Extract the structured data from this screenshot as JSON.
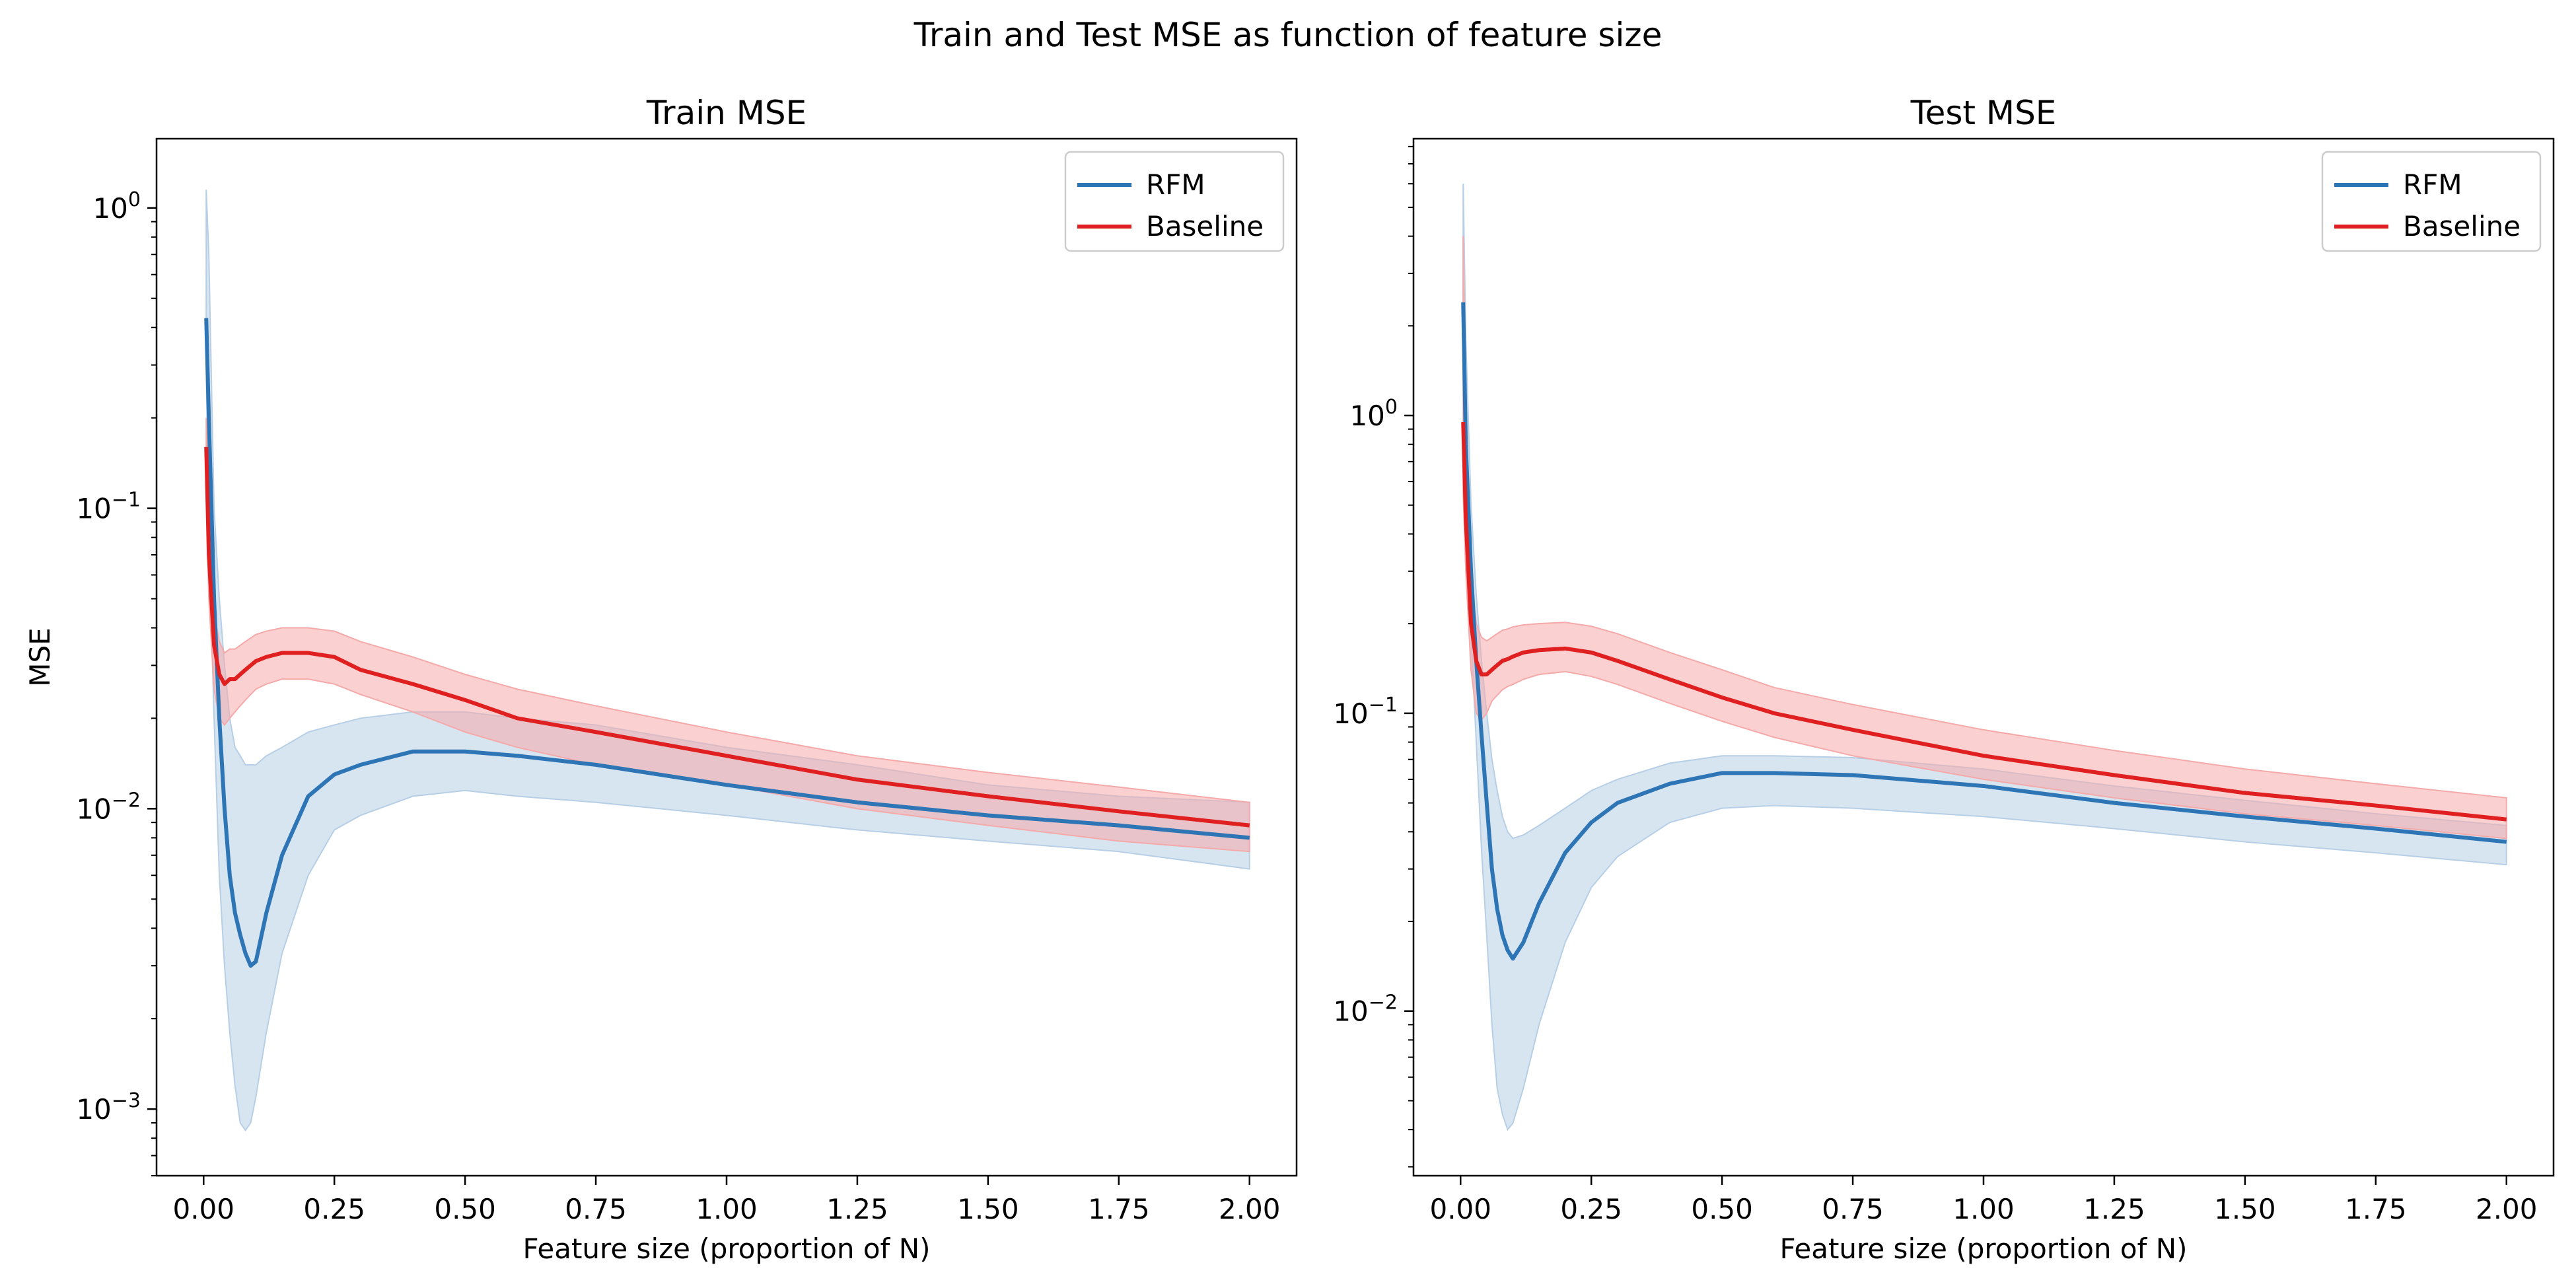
{
  "suptitle": "Train and Test MSE as function of feature size",
  "colors": {
    "rfm": "#2e75b6",
    "baseline": "#e02020",
    "rfm_band": "#b7cfe6",
    "baseline_band": "#f5a9a9"
  },
  "chart_data": [
    {
      "type": "line",
      "title": "Train MSE",
      "xlabel": "Feature size (proportion of N)",
      "ylabel": "MSE",
      "yscale": "log",
      "xlim": [
        -0.09,
        2.09
      ],
      "ylim": [
        0.0006,
        1.7
      ],
      "xticks": [
        "0.00",
        "0.25",
        "0.50",
        "0.75",
        "1.00",
        "1.25",
        "1.50",
        "1.75",
        "2.00"
      ],
      "yticks": [
        {
          "value": 1,
          "mantissa": "10",
          "exp": "0"
        },
        {
          "value": 0.1,
          "mantissa": "10",
          "exp": "−1"
        },
        {
          "value": 0.01,
          "mantissa": "10",
          "exp": "−2"
        },
        {
          "value": 0.001,
          "mantissa": "10",
          "exp": "−3"
        }
      ],
      "legend": {
        "position": "top-right",
        "entries": [
          "RFM",
          "Baseline"
        ]
      },
      "x": [
        0.005,
        0.01,
        0.02,
        0.03,
        0.04,
        0.05,
        0.06,
        0.07,
        0.08,
        0.09,
        0.1,
        0.12,
        0.15,
        0.2,
        0.25,
        0.3,
        0.4,
        0.5,
        0.6,
        0.75,
        1.0,
        1.25,
        1.5,
        1.75,
        2.0
      ],
      "series": [
        {
          "name": "RFM",
          "values": [
            0.43,
            0.2,
            0.05,
            0.02,
            0.01,
            0.006,
            0.0045,
            0.0038,
            0.0033,
            0.003,
            0.0031,
            0.0045,
            0.007,
            0.011,
            0.013,
            0.014,
            0.0155,
            0.0155,
            0.015,
            0.014,
            0.012,
            0.0105,
            0.0095,
            0.0088,
            0.008
          ],
          "lower": [
            0.3,
            0.08,
            0.02,
            0.006,
            0.003,
            0.0018,
            0.0012,
            0.0009,
            0.00085,
            0.0009,
            0.0011,
            0.0018,
            0.0033,
            0.006,
            0.0085,
            0.0095,
            0.011,
            0.0115,
            0.011,
            0.0105,
            0.0095,
            0.0085,
            0.0078,
            0.0072,
            0.0063
          ],
          "upper": [
            1.15,
            0.7,
            0.1,
            0.05,
            0.03,
            0.02,
            0.016,
            0.015,
            0.014,
            0.014,
            0.014,
            0.015,
            0.016,
            0.018,
            0.019,
            0.02,
            0.021,
            0.021,
            0.02,
            0.019,
            0.016,
            0.014,
            0.012,
            0.011,
            0.0105
          ]
        },
        {
          "name": "Baseline",
          "values": [
            0.16,
            0.07,
            0.035,
            0.028,
            0.026,
            0.027,
            0.027,
            0.028,
            0.029,
            0.03,
            0.031,
            0.032,
            0.033,
            0.033,
            0.032,
            0.029,
            0.026,
            0.023,
            0.02,
            0.018,
            0.015,
            0.0125,
            0.011,
            0.0098,
            0.0088
          ],
          "lower": [
            0.12,
            0.05,
            0.025,
            0.02,
            0.019,
            0.02,
            0.021,
            0.022,
            0.023,
            0.024,
            0.025,
            0.026,
            0.027,
            0.027,
            0.026,
            0.024,
            0.021,
            0.018,
            0.016,
            0.014,
            0.012,
            0.01,
            0.0088,
            0.0078,
            0.0072
          ],
          "upper": [
            0.2,
            0.09,
            0.045,
            0.036,
            0.033,
            0.034,
            0.034,
            0.035,
            0.036,
            0.037,
            0.038,
            0.039,
            0.04,
            0.04,
            0.039,
            0.036,
            0.032,
            0.028,
            0.025,
            0.022,
            0.018,
            0.015,
            0.0132,
            0.0118,
            0.0105
          ]
        }
      ]
    },
    {
      "type": "line",
      "title": "Test MSE",
      "xlabel": "Feature size (proportion of N)",
      "ylabel": "",
      "yscale": "log",
      "xlim": [
        -0.09,
        2.09
      ],
      "ylim": [
        0.0028,
        8.5
      ],
      "xticks": [
        "0.00",
        "0.25",
        "0.50",
        "0.75",
        "1.00",
        "1.25",
        "1.50",
        "1.75",
        "2.00"
      ],
      "yticks": [
        {
          "value": 1,
          "mantissa": "10",
          "exp": "0"
        },
        {
          "value": 0.1,
          "mantissa": "10",
          "exp": "−1"
        },
        {
          "value": 0.01,
          "mantissa": "10",
          "exp": "−2"
        }
      ],
      "legend": {
        "position": "top-right",
        "entries": [
          "RFM",
          "Baseline"
        ]
      },
      "x": [
        0.005,
        0.01,
        0.02,
        0.03,
        0.04,
        0.05,
        0.06,
        0.07,
        0.08,
        0.09,
        0.1,
        0.12,
        0.15,
        0.2,
        0.25,
        0.3,
        0.4,
        0.5,
        0.6,
        0.75,
        1.0,
        1.25,
        1.5,
        1.75,
        2.0
      ],
      "series": [
        {
          "name": "RFM",
          "values": [
            2.4,
            0.8,
            0.3,
            0.15,
            0.085,
            0.05,
            0.03,
            0.022,
            0.018,
            0.016,
            0.015,
            0.017,
            0.023,
            0.034,
            0.043,
            0.05,
            0.058,
            0.063,
            0.063,
            0.062,
            0.057,
            0.05,
            0.045,
            0.041,
            0.037
          ],
          "lower": [
            1.5,
            0.5,
            0.18,
            0.08,
            0.035,
            0.018,
            0.009,
            0.0055,
            0.0045,
            0.004,
            0.0042,
            0.0055,
            0.009,
            0.017,
            0.026,
            0.033,
            0.043,
            0.048,
            0.049,
            0.048,
            0.045,
            0.041,
            0.037,
            0.034,
            0.031
          ],
          "upper": [
            6.0,
            1.8,
            0.5,
            0.25,
            0.15,
            0.1,
            0.07,
            0.055,
            0.045,
            0.04,
            0.038,
            0.039,
            0.042,
            0.048,
            0.055,
            0.06,
            0.068,
            0.072,
            0.072,
            0.071,
            0.065,
            0.057,
            0.051,
            0.046,
            0.042
          ]
        },
        {
          "name": "Baseline",
          "values": [
            0.95,
            0.45,
            0.2,
            0.15,
            0.135,
            0.135,
            0.14,
            0.145,
            0.15,
            0.152,
            0.155,
            0.16,
            0.163,
            0.165,
            0.16,
            0.15,
            0.13,
            0.113,
            0.1,
            0.088,
            0.072,
            0.062,
            0.054,
            0.049,
            0.044
          ],
          "lower": [
            0.55,
            0.3,
            0.14,
            0.1,
            0.095,
            0.1,
            0.11,
            0.115,
            0.12,
            0.123,
            0.125,
            0.13,
            0.135,
            0.138,
            0.133,
            0.125,
            0.108,
            0.094,
            0.083,
            0.072,
            0.06,
            0.052,
            0.046,
            0.042,
            0.038
          ],
          "upper": [
            4.0,
            0.8,
            0.28,
            0.2,
            0.18,
            0.175,
            0.18,
            0.185,
            0.19,
            0.192,
            0.195,
            0.198,
            0.2,
            0.202,
            0.196,
            0.185,
            0.16,
            0.14,
            0.122,
            0.107,
            0.088,
            0.075,
            0.065,
            0.058,
            0.052
          ]
        }
      ]
    }
  ]
}
